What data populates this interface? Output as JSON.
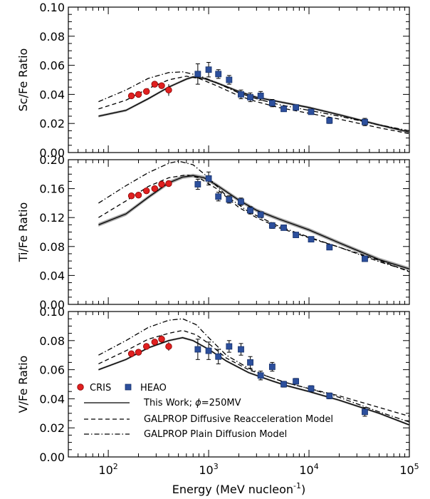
{
  "chart_data": {
    "type": "scatter",
    "xlabel": "Energy (MeV nucleon",
    "xlabel_sup": "-1",
    "xlabel_close": ")",
    "xscale": "log",
    "xlim": [
      40,
      100000
    ],
    "xticks": [
      {
        "value": 100,
        "base": "10",
        "exp": "2"
      },
      {
        "value": 1000,
        "base": "10",
        "exp": "3"
      },
      {
        "value": 10000,
        "base": "10",
        "exp": "4"
      },
      {
        "value": 100000,
        "base": "10",
        "exp": "5"
      }
    ],
    "panels": [
      {
        "ylabel": "Sc/Fe Ratio",
        "ylim": [
          0,
          0.1
        ],
        "yticks": [
          "0.00",
          "0.02",
          "0.04",
          "0.06",
          "0.08",
          "0.10"
        ],
        "yminor": 0.005,
        "cris": [
          {
            "x": 170,
            "y": 0.039,
            "err": 0.0015
          },
          {
            "x": 200,
            "y": 0.04,
            "err": 0.0015
          },
          {
            "x": 240,
            "y": 0.042,
            "err": 0.0015
          },
          {
            "x": 290,
            "y": 0.047,
            "err": 0.002
          },
          {
            "x": 340,
            "y": 0.046,
            "err": 0.002
          },
          {
            "x": 400,
            "y": 0.043,
            "err": 0.004
          }
        ],
        "heao": [
          {
            "x": 780,
            "y": 0.054,
            "err": 0.007
          },
          {
            "x": 1000,
            "y": 0.057,
            "err": 0.005
          },
          {
            "x": 1250,
            "y": 0.054,
            "err": 0.003
          },
          {
            "x": 1600,
            "y": 0.05,
            "err": 0.003
          },
          {
            "x": 2100,
            "y": 0.04,
            "err": 0.003
          },
          {
            "x": 2600,
            "y": 0.038,
            "err": 0.003
          },
          {
            "x": 3300,
            "y": 0.039,
            "err": 0.003
          },
          {
            "x": 4300,
            "y": 0.034,
            "err": 0.0025
          },
          {
            "x": 5600,
            "y": 0.03,
            "err": 0.0015
          },
          {
            "x": 7400,
            "y": 0.031,
            "err": 0.0015
          },
          {
            "x": 10500,
            "y": 0.028,
            "err": 0.0015
          },
          {
            "x": 16000,
            "y": 0.022,
            "err": 0.002
          },
          {
            "x": 36000,
            "y": 0.021,
            "err": 0.0025
          }
        ],
        "models": {
          "this_work": [
            [
              80,
              0.025
            ],
            [
              150,
              0.029
            ],
            [
              250,
              0.037
            ],
            [
              400,
              0.045
            ],
            [
              600,
              0.0505
            ],
            [
              700,
              0.052
            ],
            [
              900,
              0.051
            ],
            [
              1200,
              0.048
            ],
            [
              2000,
              0.042
            ],
            [
              3000,
              0.038
            ],
            [
              5000,
              0.035
            ],
            [
              10000,
              0.031
            ],
            [
              20000,
              0.026
            ],
            [
              50000,
              0.019
            ],
            [
              100000,
              0.014
            ]
          ],
          "this_work_band": 0.0008,
          "reacceleration": [
            [
              80,
              0.03
            ],
            [
              150,
              0.036
            ],
            [
              250,
              0.044
            ],
            [
              400,
              0.05
            ],
            [
              600,
              0.0525
            ],
            [
              800,
              0.051
            ],
            [
              1200,
              0.046
            ],
            [
              2000,
              0.039
            ],
            [
              3000,
              0.035
            ],
            [
              5000,
              0.031
            ],
            [
              10000,
              0.027
            ],
            [
              20000,
              0.023
            ],
            [
              50000,
              0.017
            ],
            [
              100000,
              0.013
            ]
          ],
          "plain": [
            [
              80,
              0.035
            ],
            [
              150,
              0.043
            ],
            [
              250,
              0.051
            ],
            [
              400,
              0.055
            ],
            [
              550,
              0.0555
            ],
            [
              800,
              0.053
            ],
            [
              1200,
              0.048
            ],
            [
              2000,
              0.041
            ],
            [
              3000,
              0.037
            ],
            [
              5000,
              0.033
            ],
            [
              10000,
              0.029
            ],
            [
              20000,
              0.025
            ],
            [
              50000,
              0.019
            ],
            [
              100000,
              0.015
            ]
          ]
        }
      },
      {
        "ylabel": "Ti/Fe Ratio",
        "ylim": [
          0,
          0.2
        ],
        "yticks": [
          "0.00",
          "0.04",
          "0.08",
          "0.12",
          "0.16",
          "0.20"
        ],
        "yminor": 0.01,
        "cris": [
          {
            "x": 170,
            "y": 0.15,
            "err": 0.003
          },
          {
            "x": 200,
            "y": 0.151,
            "err": 0.003
          },
          {
            "x": 240,
            "y": 0.157,
            "err": 0.003
          },
          {
            "x": 290,
            "y": 0.16,
            "err": 0.003
          },
          {
            "x": 340,
            "y": 0.166,
            "err": 0.004
          },
          {
            "x": 400,
            "y": 0.167,
            "err": 0.004
          }
        ],
        "heao": [
          {
            "x": 780,
            "y": 0.166,
            "err": 0.007
          },
          {
            "x": 1000,
            "y": 0.174,
            "err": 0.009
          },
          {
            "x": 1250,
            "y": 0.149,
            "err": 0.006
          },
          {
            "x": 1600,
            "y": 0.145,
            "err": 0.005
          },
          {
            "x": 2100,
            "y": 0.142,
            "err": 0.005
          },
          {
            "x": 2600,
            "y": 0.13,
            "err": 0.005
          },
          {
            "x": 3300,
            "y": 0.124,
            "err": 0.004
          },
          {
            "x": 4300,
            "y": 0.109,
            "err": 0.004
          },
          {
            "x": 5600,
            "y": 0.106,
            "err": 0.003
          },
          {
            "x": 7400,
            "y": 0.096,
            "err": 0.003
          },
          {
            "x": 10500,
            "y": 0.09,
            "err": 0.003
          },
          {
            "x": 16000,
            "y": 0.079,
            "err": 0.003
          },
          {
            "x": 36000,
            "y": 0.063,
            "err": 0.003
          }
        ],
        "models": {
          "this_work": [
            [
              80,
              0.11
            ],
            [
              150,
              0.125
            ],
            [
              250,
              0.148
            ],
            [
              400,
              0.168
            ],
            [
              550,
              0.176
            ],
            [
              700,
              0.178
            ],
            [
              900,
              0.175
            ],
            [
              1200,
              0.165
            ],
            [
              2000,
              0.144
            ],
            [
              3000,
              0.13
            ],
            [
              5000,
              0.118
            ],
            [
              10000,
              0.103
            ],
            [
              20000,
              0.085
            ],
            [
              50000,
              0.062
            ],
            [
              100000,
              0.049
            ]
          ],
          "this_work_band": 0.0025,
          "reacceleration": [
            [
              80,
              0.12
            ],
            [
              150,
              0.143
            ],
            [
              250,
              0.163
            ],
            [
              400,
              0.175
            ],
            [
              600,
              0.179
            ],
            [
              800,
              0.175
            ],
            [
              1200,
              0.16
            ],
            [
              2000,
              0.134
            ],
            [
              3000,
              0.12
            ],
            [
              5000,
              0.106
            ],
            [
              10000,
              0.092
            ],
            [
              20000,
              0.079
            ],
            [
              50000,
              0.061
            ],
            [
              100000,
              0.045
            ]
          ],
          "plain": [
            [
              80,
              0.14
            ],
            [
              150,
              0.164
            ],
            [
              250,
              0.182
            ],
            [
              400,
              0.195
            ],
            [
              500,
              0.198
            ],
            [
              700,
              0.193
            ],
            [
              1000,
              0.175
            ],
            [
              1500,
              0.15
            ],
            [
              2500,
              0.128
            ],
            [
              5000,
              0.108
            ],
            [
              10000,
              0.093
            ],
            [
              20000,
              0.079
            ],
            [
              50000,
              0.059
            ],
            [
              100000,
              0.046
            ]
          ]
        }
      },
      {
        "ylabel": "V/Fe Ratio",
        "ylim": [
          0,
          0.1
        ],
        "yticks": [
          "0.00",
          "0.02",
          "0.04",
          "0.06",
          "0.08",
          "0.10"
        ],
        "yminor": 0.005,
        "cris": [
          {
            "x": 170,
            "y": 0.071,
            "err": 0.0015
          },
          {
            "x": 200,
            "y": 0.072,
            "err": 0.0015
          },
          {
            "x": 240,
            "y": 0.076,
            "err": 0.0015
          },
          {
            "x": 290,
            "y": 0.079,
            "err": 0.002
          },
          {
            "x": 340,
            "y": 0.081,
            "err": 0.003
          },
          {
            "x": 400,
            "y": 0.076,
            "err": 0.003
          }
        ],
        "heao": [
          {
            "x": 780,
            "y": 0.074,
            "err": 0.007
          },
          {
            "x": 1000,
            "y": 0.073,
            "err": 0.006
          },
          {
            "x": 1250,
            "y": 0.069,
            "err": 0.005
          },
          {
            "x": 1600,
            "y": 0.076,
            "err": 0.004
          },
          {
            "x": 2100,
            "y": 0.074,
            "err": 0.004
          },
          {
            "x": 2600,
            "y": 0.065,
            "err": 0.004
          },
          {
            "x": 3300,
            "y": 0.056,
            "err": 0.003
          },
          {
            "x": 4300,
            "y": 0.062,
            "err": 0.003
          },
          {
            "x": 5600,
            "y": 0.05,
            "err": 0.002
          },
          {
            "x": 7400,
            "y": 0.052,
            "err": 0.002
          },
          {
            "x": 10500,
            "y": 0.047,
            "err": 0.002
          },
          {
            "x": 16000,
            "y": 0.042,
            "err": 0.002
          },
          {
            "x": 36000,
            "y": 0.031,
            "err": 0.003
          }
        ],
        "models": {
          "this_work": [
            [
              80,
              0.06
            ],
            [
              150,
              0.067
            ],
            [
              250,
              0.075
            ],
            [
              400,
              0.08
            ],
            [
              550,
              0.082
            ],
            [
              700,
              0.08
            ],
            [
              1000,
              0.074
            ],
            [
              1500,
              0.066
            ],
            [
              2500,
              0.058
            ],
            [
              4000,
              0.053
            ],
            [
              6000,
              0.049
            ],
            [
              10000,
              0.045
            ],
            [
              20000,
              0.039
            ],
            [
              50000,
              0.03
            ],
            [
              100000,
              0.022
            ]
          ],
          "this_work_band": 0.0007,
          "reacceleration": [
            [
              80,
              0.064
            ],
            [
              150,
              0.073
            ],
            [
              250,
              0.081
            ],
            [
              400,
              0.085
            ],
            [
              550,
              0.087
            ],
            [
              750,
              0.084
            ],
            [
              1000,
              0.078
            ],
            [
              1500,
              0.068
            ],
            [
              2500,
              0.06
            ],
            [
              4000,
              0.055
            ],
            [
              6000,
              0.051
            ],
            [
              10000,
              0.047
            ],
            [
              20000,
              0.042
            ],
            [
              50000,
              0.034
            ],
            [
              100000,
              0.028
            ]
          ],
          "plain": [
            [
              80,
              0.07
            ],
            [
              150,
              0.08
            ],
            [
              250,
              0.089
            ],
            [
              400,
              0.094
            ],
            [
              550,
              0.095
            ],
            [
              750,
              0.091
            ],
            [
              1000,
              0.082
            ],
            [
              1500,
              0.07
            ],
            [
              2500,
              0.061
            ],
            [
              4000,
              0.055
            ],
            [
              6000,
              0.051
            ],
            [
              10000,
              0.047
            ],
            [
              20000,
              0.041
            ],
            [
              50000,
              0.031
            ],
            [
              100000,
              0.024
            ]
          ]
        }
      }
    ],
    "legend": {
      "placement": "lower-left of bottom panel",
      "markers": [
        {
          "label": "CRIS",
          "marker": "circle",
          "color": "#e02020"
        },
        {
          "label": "HEAO",
          "marker": "square",
          "color": "#2c4f9c"
        }
      ],
      "lines": [
        {
          "label_prefix": "This Work; ",
          "label_symbol": "ϕ",
          "label_suffix": "=250MV",
          "style": "solid"
        },
        {
          "label": "GALPROP Diffusive Reacceleration Model",
          "style": "dashed"
        },
        {
          "label": "GALPROP Plain Diffusion Model",
          "style": "dashdot"
        }
      ]
    },
    "colors": {
      "cris": "#e02020",
      "cris_edge": "#8a0000",
      "heao": "#2c4f9c",
      "heao_edge": "#16306a",
      "band": "#9a9a9a"
    },
    "grid": false
  }
}
